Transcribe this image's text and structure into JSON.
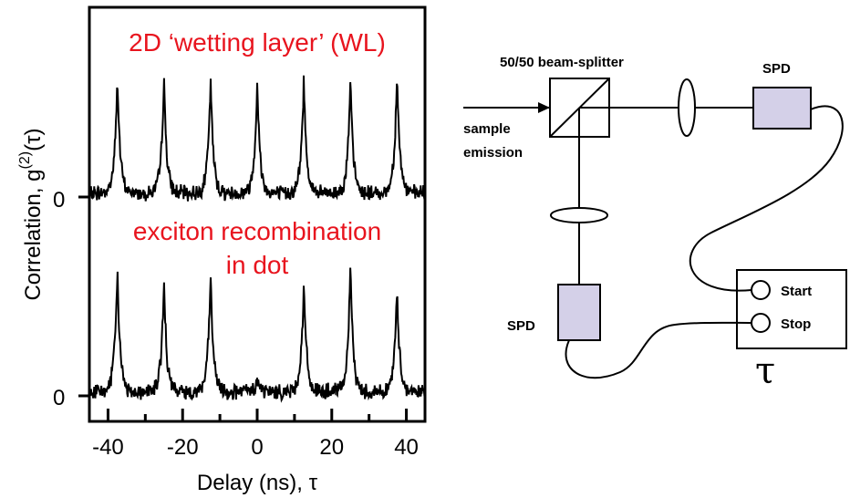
{
  "chart_data": {
    "type": "line",
    "ylabel_prefix": "Correlation, g",
    "ylabel_sup": "(2)",
    "ylabel_suffix": "(τ)",
    "xlabel": "Delay (ns), τ",
    "xlim": [
      -45,
      45
    ],
    "x_ticks": [
      "-40",
      "-20",
      "0",
      "20",
      "40"
    ],
    "x_tick_values": [
      -40,
      -20,
      0,
      20,
      40
    ],
    "zero_label": "0",
    "line_color": "#000000",
    "series": [
      {
        "name": "2D ‘wetting layer’ (WL)",
        "peak_positions": [
          -37.5,
          -25,
          -12.5,
          0,
          12.5,
          25,
          37.5
        ],
        "peak_heights": [
          0.92,
          0.9,
          0.9,
          0.88,
          0.9,
          0.88,
          0.95
        ]
      },
      {
        "name": "exciton recombination in dot",
        "name_line1": "exciton recombination",
        "name_line2": "in dot",
        "peak_positions": [
          -37.5,
          -25,
          -12.5,
          0,
          12.5,
          25,
          37.5
        ],
        "peak_heights": [
          0.9,
          0.8,
          0.85,
          0.08,
          0.8,
          0.9,
          0.75
        ]
      }
    ]
  },
  "diagram": {
    "beam_splitter_label": "50/50 beam-splitter",
    "input_label_line1": "sample",
    "input_label_line2": "emission",
    "spd_top_label": "SPD",
    "spd_bottom_label": "SPD",
    "start_label": "Start",
    "stop_label": "Stop",
    "timer_symbol": "τ",
    "detector_fill": "#d4d0e8"
  }
}
